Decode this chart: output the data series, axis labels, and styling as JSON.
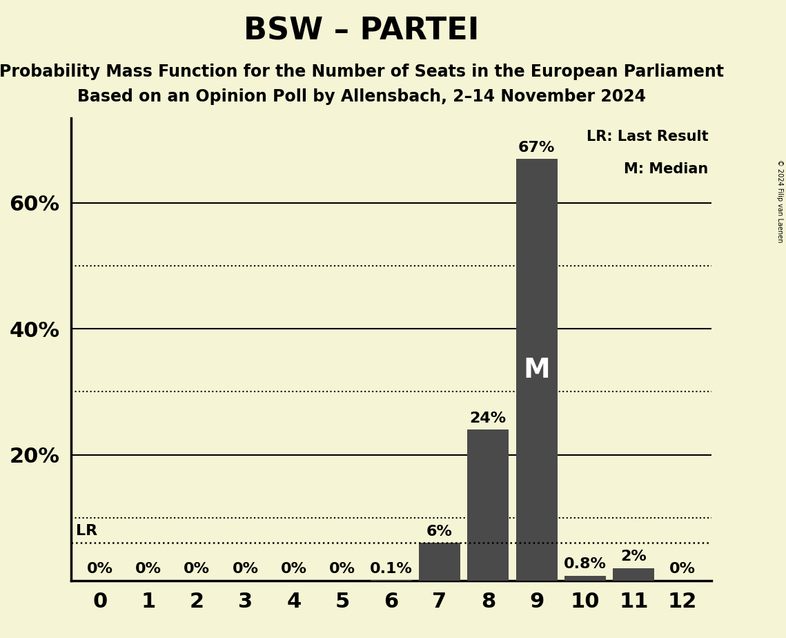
{
  "title": "BSW – PARTEI",
  "subtitle1": "Probability Mass Function for the Number of Seats in the European Parliament",
  "subtitle2": "Based on an Opinion Poll by Allensbach, 2–14 November 2024",
  "copyright": "© 2024 Filip van Laenen",
  "seats": [
    0,
    1,
    2,
    3,
    4,
    5,
    6,
    7,
    8,
    9,
    10,
    11,
    12
  ],
  "probabilities": [
    0.0,
    0.0,
    0.0,
    0.0,
    0.0,
    0.0,
    0.001,
    0.06,
    0.24,
    0.67,
    0.008,
    0.02,
    0.0
  ],
  "bar_labels": [
    "0%",
    "0%",
    "0%",
    "0%",
    "0%",
    "0%",
    "0.1%",
    "6%",
    "24%",
    "67%",
    "0.8%",
    "2%",
    "0%"
  ],
  "bar_color": "#4a4a4a",
  "background_color": "#f5f5d5",
  "lr_value": 0.06,
  "median_seat": 9,
  "ylim": [
    0,
    0.735
  ],
  "yticks": [
    0.0,
    0.2,
    0.4,
    0.6
  ],
  "ytick_labels": [
    "",
    "20%",
    "40%",
    "60%"
  ],
  "dotted_yticks": [
    0.1,
    0.3,
    0.5
  ],
  "legend_lr": "LR: Last Result",
  "legend_m": "M: Median",
  "title_fontsize": 32,
  "subtitle_fontsize": 17,
  "axis_fontsize": 22,
  "label_fontsize": 16,
  "xlim": [
    -0.6,
    12.6
  ]
}
